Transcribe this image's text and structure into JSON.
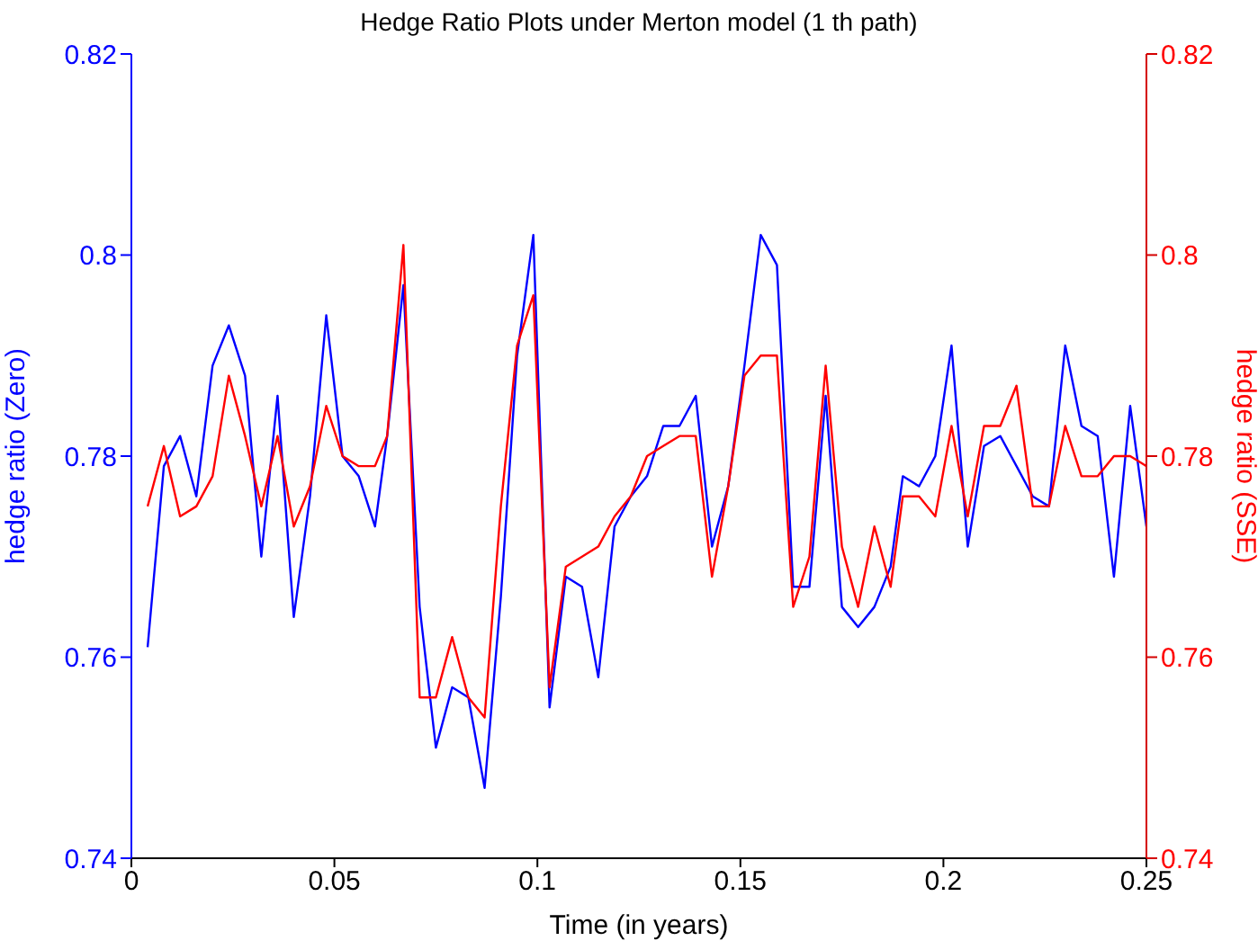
{
  "chart_data": {
    "type": "line",
    "title": "Hedge Ratio Plots under Merton model (1 th path)",
    "xlabel": "Time (in years)",
    "ylabel": "hedge ratio (Zero)",
    "y2label": "hedge ratio (SSE)",
    "x": [
      0.004,
      0.008,
      0.012,
      0.016,
      0.02,
      0.024,
      0.028,
      0.032,
      0.036,
      0.04,
      0.044,
      0.048,
      0.052,
      0.056,
      0.06,
      0.063,
      0.067,
      0.071,
      0.075,
      0.079,
      0.083,
      0.087,
      0.091,
      0.095,
      0.099,
      0.103,
      0.107,
      0.111,
      0.115,
      0.119,
      0.123,
      0.127,
      0.131,
      0.135,
      0.139,
      0.143,
      0.147,
      0.151,
      0.155,
      0.159,
      0.163,
      0.167,
      0.171,
      0.175,
      0.179,
      0.183,
      0.187,
      0.19,
      0.194,
      0.198,
      0.202,
      0.206,
      0.21,
      0.214,
      0.218,
      0.222,
      0.226,
      0.23,
      0.234,
      0.238,
      0.242,
      0.246,
      0.25
    ],
    "series": [
      {
        "color": "#0000ff",
        "values": [
          0.761,
          0.779,
          0.782,
          0.776,
          0.789,
          0.793,
          0.788,
          0.77,
          0.786,
          0.764,
          0.776,
          0.794,
          0.78,
          0.778,
          0.773,
          0.782,
          0.797,
          0.765,
          0.751,
          0.757,
          0.756,
          0.747,
          0.766,
          0.79,
          0.802,
          0.755,
          0.768,
          0.767,
          0.758,
          0.773,
          0.776,
          0.778,
          0.783,
          0.783,
          0.786,
          0.771,
          0.777,
          0.789,
          0.802,
          0.799,
          0.767,
          0.767,
          0.786,
          0.765,
          0.763,
          0.765,
          0.769,
          0.778,
          0.777,
          0.78,
          0.791,
          0.771,
          0.781,
          0.782,
          0.779,
          0.776,
          0.775,
          0.791,
          0.783,
          0.782,
          0.768,
          0.785,
          0.773
        ]
      },
      {
        "color": "#ff0000",
        "axis": "y2",
        "values": [
          0.775,
          0.781,
          0.774,
          0.775,
          0.778,
          0.788,
          0.782,
          0.775,
          0.782,
          0.773,
          0.777,
          0.785,
          0.78,
          0.779,
          0.779,
          0.782,
          0.801,
          0.756,
          0.756,
          0.762,
          0.756,
          0.754,
          0.775,
          0.791,
          0.796,
          0.757,
          0.769,
          0.77,
          0.771,
          0.774,
          0.776,
          0.78,
          0.781,
          0.782,
          0.782,
          0.768,
          0.777,
          0.788,
          0.79,
          0.79,
          0.765,
          0.77,
          0.789,
          0.771,
          0.765,
          0.773,
          0.767,
          0.776,
          0.776,
          0.774,
          0.783,
          0.774,
          0.783,
          0.783,
          0.787,
          0.775,
          0.775,
          0.783,
          0.778,
          0.778,
          0.78,
          0.78,
          0.779
        ]
      }
    ],
    "xlim": [
      0,
      0.25
    ],
    "xticks": [
      0,
      0.05,
      0.1,
      0.15,
      0.2,
      0.25
    ],
    "ylim": [
      0.74,
      0.82
    ],
    "yticks": [
      0.74,
      0.76,
      0.78,
      0.8,
      0.82
    ],
    "y2lim": [
      0.74,
      0.82
    ],
    "y2ticks": [
      0.74,
      0.76,
      0.78,
      0.8,
      0.82
    ],
    "marker": "none",
    "line_style": "solid"
  }
}
